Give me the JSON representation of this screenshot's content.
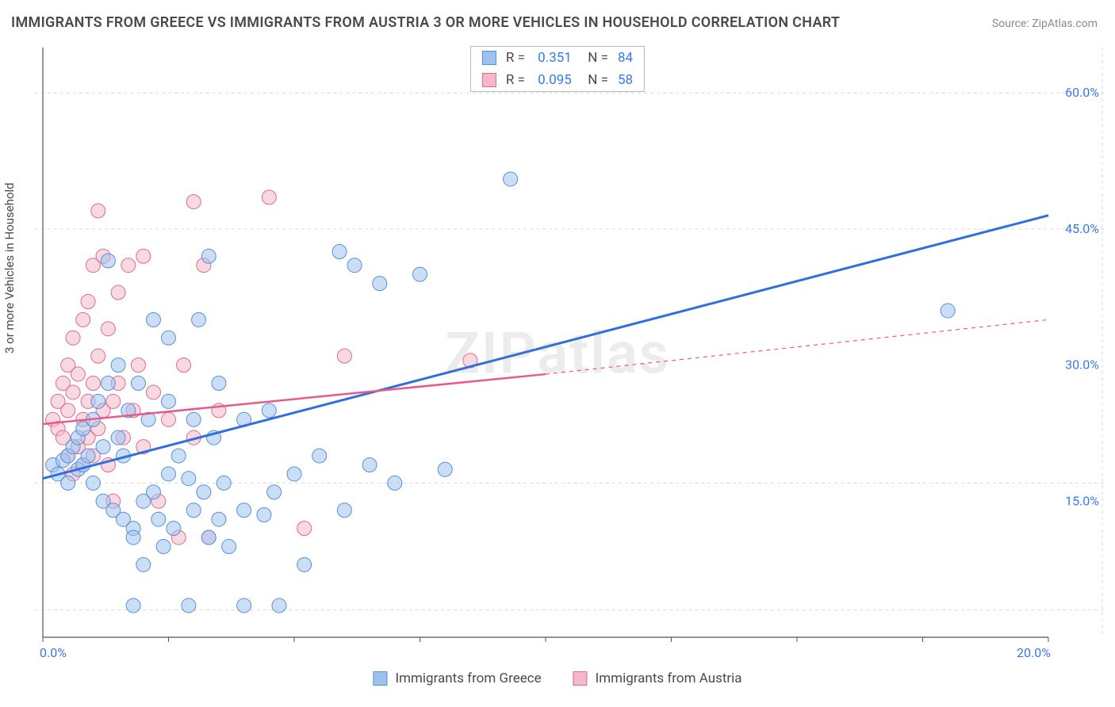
{
  "title": "IMMIGRANTS FROM GREECE VS IMMIGRANTS FROM AUSTRIA 3 OR MORE VEHICLES IN HOUSEHOLD CORRELATION CHART",
  "source": "Source: ZipAtlas.com",
  "ylabel": "3 or more Vehicles in Household",
  "watermark": "ZIPatlas",
  "chart": {
    "type": "scatter",
    "xlim": [
      0,
      20
    ],
    "ylim": [
      0,
      65
    ],
    "xtick_positions": [
      0,
      2.5,
      5,
      7.5,
      10,
      12.5,
      15,
      17.5,
      20
    ],
    "xtick_labels": {
      "0": "0.0%",
      "20": "20.0%"
    },
    "ytick_positions": [
      15,
      30,
      45,
      60
    ],
    "ytick_labels": {
      "15": "15.0%",
      "30": "30.0%",
      "45": "45.0%",
      "60": "60.0%"
    },
    "hgrid_positions": [
      3,
      17,
      45,
      60
    ],
    "grid_color": "#d9d9d9",
    "axis_color": "#555555",
    "label_color": "#3b78e7",
    "background_color": "#ffffff",
    "marker_radius": 9,
    "marker_opacity": 0.55,
    "series": [
      {
        "name": "Immigrants from Greece",
        "fill": "#9ec2ef",
        "stroke": "#5a8fd6",
        "line_color": "#2f6fe0",
        "line_width": 3,
        "R": "0.351",
        "N": "84",
        "trend": {
          "x1": 0,
          "y1": 17.5,
          "x2": 20,
          "y2": 46.5
        },
        "points": [
          [
            0.2,
            19
          ],
          [
            0.3,
            18
          ],
          [
            0.4,
            19.5
          ],
          [
            0.5,
            20
          ],
          [
            0.5,
            17
          ],
          [
            0.6,
            21
          ],
          [
            0.7,
            18.5
          ],
          [
            0.7,
            22
          ],
          [
            0.8,
            19
          ],
          [
            0.8,
            23
          ],
          [
            0.9,
            20
          ],
          [
            1.0,
            17
          ],
          [
            1.0,
            24
          ],
          [
            1.1,
            26
          ],
          [
            1.2,
            15
          ],
          [
            1.2,
            21
          ],
          [
            1.3,
            28
          ],
          [
            1.3,
            41.5
          ],
          [
            1.4,
            14
          ],
          [
            1.5,
            22
          ],
          [
            1.5,
            30
          ],
          [
            1.6,
            13
          ],
          [
            1.6,
            20
          ],
          [
            1.7,
            25
          ],
          [
            1.8,
            12
          ],
          [
            1.8,
            11
          ],
          [
            1.8,
            3.5
          ],
          [
            1.9,
            28
          ],
          [
            2.0,
            15
          ],
          [
            2.0,
            8
          ],
          [
            2.1,
            24
          ],
          [
            2.2,
            16
          ],
          [
            2.2,
            35
          ],
          [
            2.3,
            13
          ],
          [
            2.4,
            10
          ],
          [
            2.5,
            18
          ],
          [
            2.5,
            26
          ],
          [
            2.5,
            33
          ],
          [
            2.6,
            12
          ],
          [
            2.7,
            20
          ],
          [
            2.9,
            17.5
          ],
          [
            2.9,
            3.5
          ],
          [
            3.0,
            14
          ],
          [
            3.0,
            24
          ],
          [
            3.1,
            35
          ],
          [
            3.2,
            16
          ],
          [
            3.3,
            11
          ],
          [
            3.3,
            42
          ],
          [
            3.4,
            22
          ],
          [
            3.5,
            13
          ],
          [
            3.5,
            28
          ],
          [
            3.6,
            17
          ],
          [
            3.7,
            10
          ],
          [
            4.0,
            14
          ],
          [
            4.0,
            24
          ],
          [
            4.0,
            3.5
          ],
          [
            4.4,
            13.5
          ],
          [
            4.5,
            25
          ],
          [
            4.6,
            16
          ],
          [
            4.7,
            3.5
          ],
          [
            5.0,
            18
          ],
          [
            5.2,
            8
          ],
          [
            5.5,
            20
          ],
          [
            5.9,
            42.5
          ],
          [
            6.0,
            14
          ],
          [
            6.2,
            41
          ],
          [
            6.5,
            19
          ],
          [
            6.7,
            39
          ],
          [
            7.0,
            17
          ],
          [
            7.5,
            40
          ],
          [
            8.0,
            18.5
          ],
          [
            9.3,
            50.5
          ],
          [
            18,
            36
          ]
        ]
      },
      {
        "name": "Immigrants from Austria",
        "fill": "#f3b9c8",
        "stroke": "#e06a8a",
        "line_color": "#e85a8a",
        "line_width": 2.5,
        "R": "0.095",
        "N": "58",
        "trend_solid": {
          "x1": 0,
          "y1": 23.5,
          "x2": 10,
          "y2": 29
        },
        "trend_dashed": {
          "x1": 10,
          "y1": 29,
          "x2": 20,
          "y2": 35
        },
        "points": [
          [
            0.2,
            24
          ],
          [
            0.3,
            23
          ],
          [
            0.3,
            26
          ],
          [
            0.4,
            22
          ],
          [
            0.4,
            28
          ],
          [
            0.5,
            20
          ],
          [
            0.5,
            25
          ],
          [
            0.5,
            30
          ],
          [
            0.6,
            18
          ],
          [
            0.6,
            27
          ],
          [
            0.6,
            33
          ],
          [
            0.7,
            21
          ],
          [
            0.7,
            29
          ],
          [
            0.8,
            19
          ],
          [
            0.8,
            24
          ],
          [
            0.8,
            35
          ],
          [
            0.9,
            22
          ],
          [
            0.9,
            26
          ],
          [
            0.9,
            37
          ],
          [
            1.0,
            20
          ],
          [
            1.0,
            28
          ],
          [
            1.0,
            41
          ],
          [
            1.1,
            23
          ],
          [
            1.1,
            31
          ],
          [
            1.1,
            47
          ],
          [
            1.2,
            25
          ],
          [
            1.2,
            42
          ],
          [
            1.3,
            19
          ],
          [
            1.3,
            34
          ],
          [
            1.4,
            26
          ],
          [
            1.4,
            15
          ],
          [
            1.5,
            28
          ],
          [
            1.5,
            38
          ],
          [
            1.6,
            22
          ],
          [
            1.7,
            41
          ],
          [
            1.8,
            25
          ],
          [
            1.9,
            30
          ],
          [
            2.0,
            21
          ],
          [
            2.0,
            42
          ],
          [
            2.2,
            27
          ],
          [
            2.3,
            15
          ],
          [
            2.5,
            24
          ],
          [
            2.7,
            11
          ],
          [
            2.8,
            30
          ],
          [
            3.0,
            22
          ],
          [
            3.0,
            48
          ],
          [
            3.2,
            41
          ],
          [
            3.3,
            11
          ],
          [
            3.5,
            25
          ],
          [
            4.5,
            48.5
          ],
          [
            5.2,
            12
          ],
          [
            6.0,
            31
          ],
          [
            8.5,
            30.5
          ]
        ]
      }
    ]
  },
  "legend": {
    "series1": "Immigrants from Greece",
    "series2": "Immigrants from Austria"
  }
}
